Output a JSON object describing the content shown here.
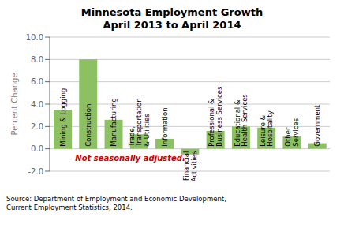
{
  "chart_data": {
    "type": "bar",
    "title": "Minnesota Employment Growth\nApril 2013 to April 2014",
    "ylabel": "Percent Change",
    "categories": [
      "Mining & Logging",
      "Construction",
      "Manufacturing",
      "Trade,\nTransportation\n& Utilities",
      "Information",
      "Financial\nActivities",
      "Professional &\nBusiness Services",
      "Educational &\nHealth Services",
      "Leisure &\nHospitality",
      "Other\nServices",
      "Government"
    ],
    "values": [
      3.5,
      8.0,
      2.6,
      1.3,
      0.9,
      -0.5,
      1.6,
      2.0,
      1.9,
      1.1,
      0.5
    ],
    "color": "#8dc063",
    "ylim": [
      -2.0,
      10.0
    ],
    "yticks": [
      {
        "value": -2.0,
        "label": "-2.0"
      },
      {
        "value": 0.0,
        "label": "0.0"
      },
      {
        "value": 2.0,
        "label": "2.0"
      },
      {
        "value": 4.0,
        "label": "4.0"
      },
      {
        "value": 6.0,
        "label": "6.0"
      },
      {
        "value": 8.0,
        "label": "8.0"
      },
      {
        "value": 10.0,
        "label": "10.0"
      }
    ],
    "grid": true,
    "tick_labels": "y",
    "annotations": [
      {
        "text": "Not seasonally adjusted.",
        "color": "#cc0000"
      },
      {
        "text": "Source: Department of Employment and Economic Development,\nCurrent Employment Statistics, 2014."
      }
    ]
  }
}
